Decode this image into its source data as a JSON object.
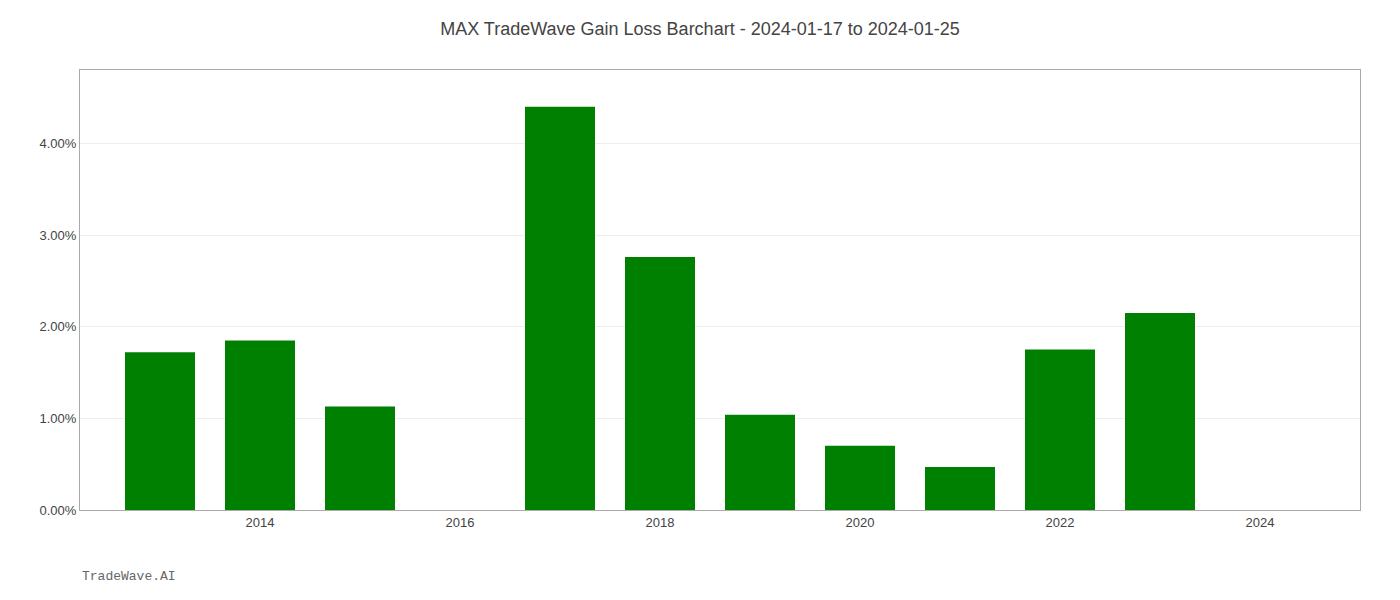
{
  "chart_data": {
    "type": "bar",
    "title": "MAX TradeWave Gain Loss Barchart - 2024-01-17 to 2024-01-25",
    "annotations": [
      "TradeWave.AI"
    ],
    "x": [
      2013,
      2014,
      2015,
      2017,
      2018,
      2019,
      2020,
      2021,
      2022,
      2023
    ],
    "values": [
      0.0172,
      0.0185,
      0.0113,
      0.044,
      0.0276,
      0.0104,
      0.007,
      0.0047,
      0.0175,
      0.0215
    ],
    "color": "#008000",
    "xlim": [
      2012.2,
      2025.0
    ],
    "xticks": [
      2014,
      2016,
      2018,
      2020,
      2022,
      2024
    ],
    "ylim": [
      0,
      0.048
    ],
    "yticks": [
      {
        "value": 0.0,
        "label": "0.00%"
      },
      {
        "value": 0.01,
        "label": "1.00%"
      },
      {
        "value": 0.02,
        "label": "2.00%"
      },
      {
        "value": 0.03,
        "label": "3.00%"
      },
      {
        "value": 0.04,
        "label": "4.00%"
      }
    ],
    "grid": "y"
  }
}
